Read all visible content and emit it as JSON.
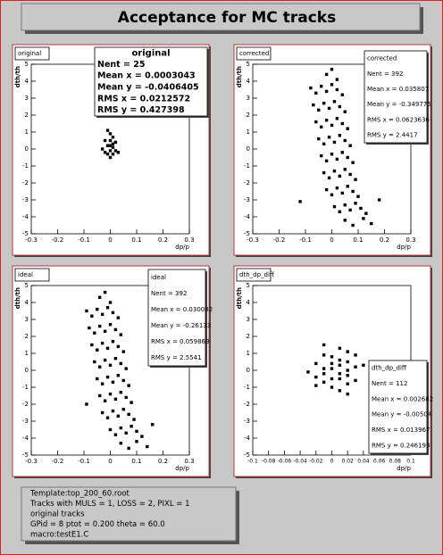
{
  "header": {
    "title": "Acceptance for MC tracks"
  },
  "footer": {
    "lines": [
      "Template:top_200_60.root",
      "Tracks with  MULS = 1, LOSS = 2, PIXL = 1",
      "original tracks",
      "GPid =  8   ptot =   0.200  theta =  60.0",
      "macro:testE1.C"
    ]
  },
  "chart_data": [
    {
      "type": "scatter",
      "title": "original",
      "xlabel": "dp/p",
      "ylabel": "dth/th",
      "stats": {
        "title": "original",
        "lines": [
          "Nent = 25",
          "Mean x = 0.0003043",
          "Mean y = -0.0406405",
          "RMS x = 0.0212572",
          "RMS y = 0.427398"
        ]
      },
      "x": [
        -0.01,
        0,
        0.01,
        -0.02,
        0,
        0.02,
        -0.01,
        0.01,
        -0.03,
        0,
        0.02,
        -0.01,
        0.01,
        0,
        -0.02,
        0.01,
        0,
        0.03
      ],
      "y": [
        1.1,
        0.9,
        0.7,
        0.5,
        0.5,
        0.4,
        0.2,
        0.1,
        0,
        -0.1,
        -0.1,
        -0.3,
        -0.3,
        -0.5,
        -0.2,
        0.3,
        0.2,
        -0.2
      ],
      "xlim": [
        -0.3,
        0.3
      ],
      "ylim": [
        -5,
        5
      ],
      "xticks": [
        -0.3,
        -0.2,
        -0.1,
        0,
        0.1,
        0.2,
        0.3
      ],
      "yticks": [
        -5,
        -4,
        -3,
        -2,
        -1,
        0,
        1,
        2,
        3,
        4,
        5
      ]
    },
    {
      "type": "scatter",
      "title": "corrected",
      "xlabel": "dp/p",
      "ylabel": "dth/th",
      "stats": {
        "title": "corrected",
        "lines": [
          "Nent = 392",
          "Mean x = 0.035807",
          "Mean y = -0.349775",
          "RMS x = 0.0623636",
          "RMS y = 2.4417"
        ]
      },
      "x": [
        -0.08,
        -0.06,
        -0.04,
        -0.02,
        0,
        0.02,
        0.04,
        -0.07,
        -0.05,
        -0.03,
        -0.01,
        0.01,
        0.03,
        0.05,
        -0.06,
        -0.04,
        -0.02,
        0,
        0.02,
        0.04,
        0.06,
        -0.05,
        -0.03,
        -0.01,
        0.01,
        0.03,
        0.05,
        0.07,
        -0.04,
        -0.02,
        0,
        0.02,
        0.04,
        0.06,
        0.08,
        -0.03,
        -0.01,
        0.01,
        0.03,
        0.05,
        0.07,
        0.09,
        -0.02,
        0,
        0.02,
        0.04,
        0.06,
        0.08,
        0.1,
        0.01,
        0.03,
        0.05,
        0.07,
        0.09,
        0.11,
        0.13,
        0.05,
        0.08,
        0.12,
        0.15,
        -0.02,
        0,
        0.02,
        -0.12,
        0.18
      ],
      "y": [
        3.6,
        3.3,
        3.7,
        3.4,
        3.8,
        3.5,
        3.2,
        2.6,
        2.3,
        2.7,
        2.4,
        2.8,
        2.5,
        2.2,
        1.6,
        1.3,
        1.7,
        1.4,
        1.8,
        1.5,
        1.2,
        0.6,
        0.3,
        0.7,
        0.4,
        0.8,
        0.5,
        0.2,
        -0.4,
        -0.7,
        -0.3,
        -0.6,
        -0.2,
        -0.5,
        -0.8,
        -1.4,
        -1.7,
        -1.3,
        -1.6,
        -1.2,
        -1.5,
        -1.8,
        -2.4,
        -2.7,
        -2.3,
        -2.6,
        -2.2,
        -2.5,
        -2.8,
        -3.4,
        -3.7,
        -3.3,
        -3.6,
        -3.2,
        -3.5,
        -3.8,
        -4.2,
        -4.5,
        -4.1,
        -4.4,
        4.4,
        4.7,
        4.1,
        -3.1,
        -3.0
      ],
      "xlim": [
        -0.3,
        0.3
      ],
      "ylim": [
        -5,
        5
      ],
      "xticks": [
        -0.3,
        -0.2,
        -0.1,
        0,
        0.1,
        0.2,
        0.3
      ],
      "yticks": [
        -5,
        -4,
        -3,
        -2,
        -1,
        0,
        1,
        2,
        3,
        4,
        5
      ]
    },
    {
      "type": "scatter",
      "title": "ideal",
      "xlabel": "dp/p",
      "ylabel": "dth/th",
      "stats": {
        "title": "ideal",
        "lines": [
          "Nent = 392",
          "Mean x = 0.030082",
          "Mean y = -0.26133",
          "RMS x = 0.059863",
          "RMS y = 2.5541"
        ]
      },
      "x": [
        -0.09,
        -0.07,
        -0.05,
        -0.03,
        -0.01,
        0.01,
        0.03,
        -0.08,
        -0.06,
        -0.04,
        -0.02,
        0,
        0.02,
        0.04,
        -0.07,
        -0.05,
        -0.03,
        -0.01,
        0.01,
        0.03,
        0.05,
        -0.06,
        -0.04,
        -0.02,
        0,
        0.02,
        0.04,
        0.06,
        -0.05,
        -0.03,
        -0.01,
        0.01,
        0.03,
        0.05,
        0.07,
        -0.04,
        -0.02,
        0,
        0.02,
        0.04,
        0.06,
        0.08,
        -0.03,
        -0.01,
        0.01,
        0.03,
        0.05,
        0.07,
        0.09,
        0,
        0.02,
        0.04,
        0.06,
        0.08,
        0.1,
        0.12,
        0.04,
        0.07,
        0.1,
        0.14,
        -0.04,
        -0.02,
        0,
        -0.09,
        0.16
      ],
      "y": [
        3.5,
        3.2,
        3.6,
        3.3,
        3.7,
        3.4,
        3.1,
        2.5,
        2.2,
        2.6,
        2.3,
        2.7,
        2.4,
        2.1,
        1.5,
        1.2,
        1.6,
        1.3,
        1.7,
        1.4,
        1.1,
        0.5,
        0.2,
        0.6,
        0.3,
        0.7,
        0.4,
        0.1,
        -0.5,
        -0.8,
        -0.4,
        -0.7,
        -0.3,
        -0.6,
        -0.9,
        -1.5,
        -1.8,
        -1.4,
        -1.7,
        -1.3,
        -1.6,
        -1.9,
        -2.5,
        -2.8,
        -2.4,
        -2.7,
        -2.3,
        -2.6,
        -2.9,
        -3.5,
        -3.8,
        -3.4,
        -3.7,
        -3.3,
        -3.6,
        -3.9,
        -4.3,
        -4.6,
        -4.2,
        -4.5,
        4.3,
        4.6,
        4.0,
        -2.0,
        -3.2
      ],
      "xlim": [
        -0.3,
        0.3
      ],
      "ylim": [
        -5,
        5
      ],
      "xticks": [
        -0.3,
        -0.2,
        -0.1,
        0,
        0.1,
        0.2,
        0.3
      ],
      "yticks": [
        -5,
        -4,
        -3,
        -2,
        -1,
        0,
        1,
        2,
        3,
        4,
        5
      ]
    },
    {
      "type": "scatter",
      "title": "dth_dp_diff",
      "xlabel": "dp/p",
      "ylabel": "dth/th",
      "stats": {
        "title": "dth_dp_diff",
        "lines": [
          "Nent = 112",
          "Mean x = 0.002682",
          "Mean y = -0.00504",
          "RMS x = 0.013967",
          "RMS y = 0.246193"
        ]
      },
      "x": [
        0.01,
        0.02,
        0.03,
        -0.01,
        0,
        0.01,
        0.02,
        -0.02,
        0,
        0.01,
        0.03,
        -0.01,
        0,
        0.02,
        -0.03,
        -0.01,
        0.01,
        0.02,
        -0.02,
        0,
        0.01,
        -0.01,
        0.02,
        0.03,
        -0.02,
        0,
        0.01,
        0.04,
        -0.01,
        0.02
      ],
      "y": [
        1.3,
        1.1,
        0.9,
        0.9,
        0.8,
        0.6,
        0.5,
        0.4,
        0.4,
        0.3,
        0.2,
        0.1,
        0.1,
        0,
        -0.1,
        -0.2,
        -0.2,
        -0.3,
        -0.4,
        -0.5,
        -0.5,
        -0.7,
        -0.8,
        -0.6,
        -0.9,
        -1.0,
        -1.2,
        0.3,
        1.5,
        -1.4
      ],
      "xlim": [
        -0.1,
        0.1
      ],
      "ylim": [
        -5,
        5
      ],
      "xticks": [
        -0.1,
        -0.08,
        -0.06,
        -0.04,
        -0.02,
        0,
        0.02,
        0.04,
        0.06,
        0.08,
        0.1
      ],
      "yticks": [
        -5,
        -4,
        -3,
        -2,
        -1,
        0,
        1,
        2,
        3,
        4,
        5
      ]
    }
  ]
}
